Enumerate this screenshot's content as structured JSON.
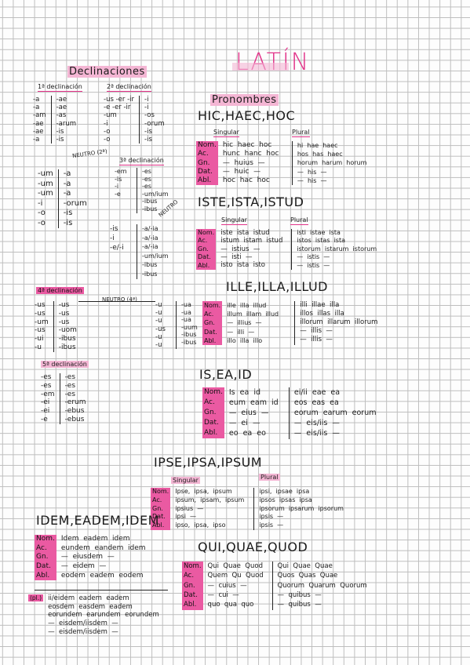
{
  "title": "LATÍN",
  "declinaciones": {
    "heading": "Declinaciones",
    "first": {
      "label": "1ª declinación",
      "sing": [
        "-a",
        "-a",
        "-am",
        "-ae",
        "-ae",
        "-a"
      ],
      "plur": [
        "-ae",
        "-ae",
        "-as",
        "-arum",
        "-is",
        "-is"
      ]
    },
    "second": {
      "label": "2ª declinación",
      "sing": [
        "-us -er -ir",
        "-e -er -ir",
        "-um",
        "-i",
        "-o",
        "-o"
      ],
      "plur": [
        "-i",
        "-i",
        "-os",
        "-orum",
        "-is",
        "-is"
      ]
    },
    "neutro2": {
      "label": "NEUTRO (2ª)",
      "sing": [
        "-um",
        "-um",
        "-um",
        "-i",
        "-o",
        "-o"
      ],
      "plur": [
        "-a",
        "-a",
        "-a",
        "-orum",
        "-is",
        "-is"
      ]
    },
    "third": {
      "label": "3ª declinación",
      "sing": [
        "",
        "",
        "-em",
        "-is",
        "-i",
        "-e"
      ],
      "plur": [
        "-es",
        "-es",
        "-es",
        "-um/ium",
        "-ibus",
        "-ibus"
      ]
    },
    "neutro3": {
      "label": "NEUTRO",
      "sing": [
        "",
        "",
        "",
        "-is",
        "-i",
        "-e/-i"
      ],
      "plur": [
        "-a/-ia",
        "-a/-ia",
        "-a/-ia",
        "-um/ium",
        "-ibus",
        "-ibus"
      ]
    },
    "fourth": {
      "label": "4ª declinación",
      "sing": [
        "-us",
        "-us",
        "-um",
        "-us",
        "-ui",
        "-u"
      ],
      "plur": [
        "-us",
        "-us",
        "-us",
        "-uom",
        "-ibus",
        "-ibus"
      ]
    },
    "neutro4": {
      "label": "NEUTRO (4ª)",
      "sing": [
        "-u",
        "-u",
        "-u",
        "-us",
        "-u",
        "-u"
      ],
      "plur": [
        "-ua",
        "-ua",
        "-ua",
        "-uum",
        "-ibus",
        "-ibus"
      ]
    },
    "fifth": {
      "label": "5ª declinación",
      "sing": [
        "-es",
        "-es",
        "-em",
        "-ei",
        "-ei",
        "-e"
      ],
      "plur": [
        "-es",
        "-es",
        "-es",
        "-erum",
        "-ebus",
        "-ebus"
      ]
    }
  },
  "pronombres": {
    "heading": "Pronombres",
    "cases": [
      "Nom.",
      "Ac.",
      "Gn.",
      "Dat.",
      "Abl."
    ],
    "singular_label": "Singular",
    "plural_label": "Plural",
    "hic": {
      "title": "HIC,HAEC,HOC",
      "sing": [
        "hic  haec  hoc",
        "hunc  hanc  hoc",
        "—  huius  —",
        "—  huic  —",
        "hoc  hac  hoc"
      ],
      "plur": [
        "hi  hae  haec",
        "hos  has  haec",
        "horum  harum  horum",
        "—  his  —",
        "—  his  —"
      ]
    },
    "iste": {
      "title": "ISTE,ISTA,ISTUD",
      "sing": [
        "iste  ista  istud",
        "istum  istam  istud",
        "—  istius  —",
        "—  isti  —",
        "isto  ista  isto"
      ],
      "plur": [
        "isti  istae  ista",
        "istos  istas  ista",
        "istorum  istarum  istorum",
        "—  istis  —",
        "—  istis  —"
      ]
    },
    "ille": {
      "title": "ILLE,ILLA,ILLUD",
      "sing": [
        "ille  illa  illud",
        "illum  illam  illud",
        "—  illius  —",
        "—  illi  —",
        "illo  illa  illo"
      ],
      "plur": [
        "illi  illae  illa",
        "illos  illas  illa",
        "illorum  illarum  illorum",
        "—  illis  —",
        "—  illis  —"
      ]
    },
    "is": {
      "title": "IS,EA,ID",
      "sing": [
        "Is  ea  id",
        "eum  eam  id",
        "—  eius  —",
        "—  ei  —",
        "eo  ea  eo"
      ],
      "plur": [
        "ei/ii  eae  ea",
        "eos  eas  ea",
        "eorum  earum  eorum",
        "—  eis/iis  —",
        "—  eis/iis  —"
      ]
    },
    "ipse": {
      "title": "IPSE,IPSA,IPSUM",
      "sing": [
        "Ipse,  ipsa,  ipsum",
        "ipsum,  ipsam,  ipsum",
        "ipsius  —",
        "ipsi  —",
        "ipso,  ipsa,  ipso"
      ],
      "plur": [
        "ipsi,  ipsae  ipsa",
        "ipsos  ipsas  ipsa",
        "ipsorum  ipsarum  ipsorum",
        "ipsis  —",
        "ipsis  —"
      ]
    },
    "idem": {
      "title": "IDEM,EADEM,IDEM",
      "sing": [
        "Idem  eadem  idem",
        "eundem  eandem  idem",
        "—  eiusdem  —",
        "—  eidem  —",
        "eodem  eadem  eodem"
      ],
      "plur_label": "(pl.)",
      "plur": [
        "ii/eidem  eadem  eadem",
        "eosdem  easdem  eadem",
        "eorundem  earundem  eorundem",
        "—  eisdem/iisdem  —",
        "—  eisdem/iisdem  —"
      ]
    },
    "qui": {
      "title": "QUI,QUAE,QUOD",
      "sing": [
        "Qui  Quae  Quod",
        "Quem  Qu  Quod",
        "—  cuius  —",
        "—  cui  —",
        "quo  qua  quo"
      ],
      "plur": [
        "Qui  Quae  Quae",
        "Quos  Quas  Quae",
        "Quorum  Quarum  Quorum",
        "—  quibus  —",
        "—  quibus  —"
      ]
    }
  }
}
